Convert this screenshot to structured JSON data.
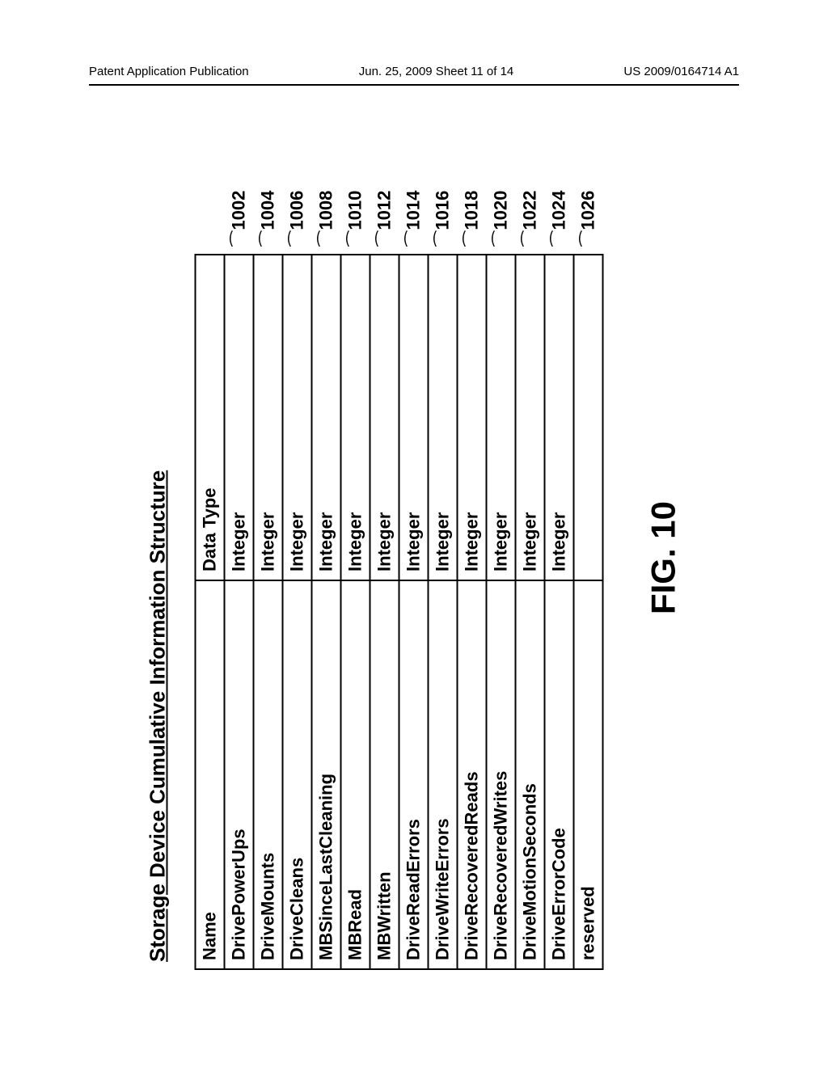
{
  "header": {
    "left": "Patent Application Publication",
    "center": "Jun. 25, 2009  Sheet 11 of 14",
    "right": "US 2009/0164714 A1"
  },
  "figure": {
    "title": "Storage Device Cumulative Information Structure",
    "label": "FIG. 10",
    "columns": [
      "Name",
      "Data Type"
    ],
    "rows": [
      {
        "name": "DrivePowerUps",
        "type": "Integer",
        "ref": "1002"
      },
      {
        "name": "DriveMounts",
        "type": "Integer",
        "ref": "1004"
      },
      {
        "name": "DriveCleans",
        "type": "Integer",
        "ref": "1006"
      },
      {
        "name": "MBSinceLastCleaning",
        "type": "Integer",
        "ref": "1008"
      },
      {
        "name": "MBRead",
        "type": "Integer",
        "ref": "1010"
      },
      {
        "name": "MBWritten",
        "type": "Integer",
        "ref": "1012"
      },
      {
        "name": "DriveReadErrors",
        "type": "Integer",
        "ref": "1014"
      },
      {
        "name": "DriveWriteErrors",
        "type": "Integer",
        "ref": "1016"
      },
      {
        "name": "DriveRecoveredReads",
        "type": "Integer",
        "ref": "1018"
      },
      {
        "name": "DriveRecoveredWrites",
        "type": "Integer",
        "ref": "1020"
      },
      {
        "name": "DriveMotionSeconds",
        "type": "Integer",
        "ref": "1022"
      },
      {
        "name": "DriveErrorCode",
        "type": "Integer",
        "ref": "1024"
      },
      {
        "name": "reserved",
        "type": "",
        "ref": "1026"
      }
    ]
  }
}
